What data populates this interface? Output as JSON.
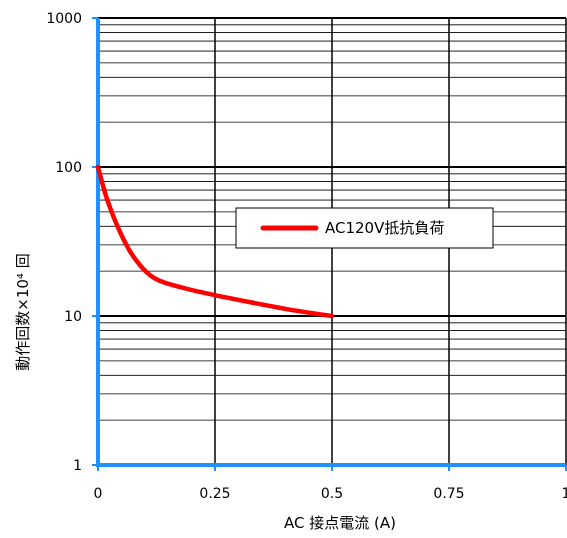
{
  "chart_data": {
    "type": "line",
    "title": "",
    "xlabel": "AC 接点電流 (A)",
    "ylabel": "動作回数×10⁴ 回",
    "xlim": [
      0,
      1
    ],
    "ylim": [
      1,
      1000
    ],
    "y_scale": "log",
    "grid": true,
    "x_tick_labels": [
      "0",
      "0.25",
      "0.5",
      "0.75",
      "1"
    ],
    "x_ticks": [
      0,
      0.25,
      0.5,
      0.75,
      1
    ],
    "y_tick_labels": [
      "1",
      "10",
      "100",
      "1000"
    ],
    "y_ticks": [
      1,
      10,
      100,
      1000
    ],
    "legend_position": "center-right",
    "series": [
      {
        "name": "AC120V抵抗負荷",
        "color": "#ff0000",
        "x": [
          0,
          0.02,
          0.05,
          0.08,
          0.12,
          0.18,
          0.25,
          0.33,
          0.42,
          0.5
        ],
        "y": [
          100,
          60,
          35,
          24,
          18,
          15.5,
          13.8,
          12.3,
          10.9,
          10
        ]
      }
    ]
  }
}
